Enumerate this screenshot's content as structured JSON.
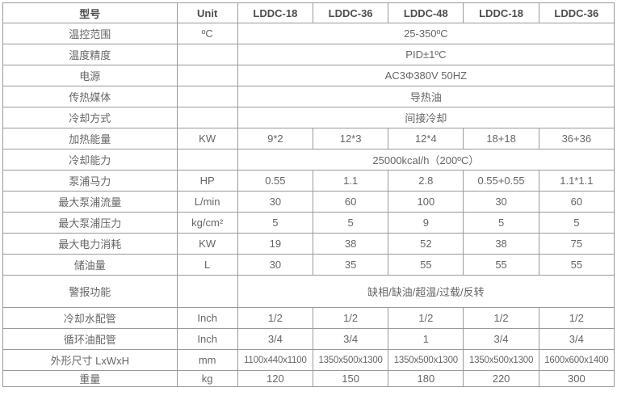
{
  "colors": {
    "outer_border": "#333333",
    "inner_border": "#9a9a9a",
    "body_text": "#666666",
    "header_text": "#4d4d4d",
    "background": "#ffffff"
  },
  "header": {
    "model": "型号",
    "unit": "Unit",
    "models": [
      "LDDC-18",
      "LDDC-36",
      "LDDC-48",
      "LDDC-18",
      "LDDC-36"
    ]
  },
  "rows": [
    {
      "label": "温控范围",
      "unit": "ºC",
      "span": "25-350ºC"
    },
    {
      "label": "温度精度",
      "unit": "",
      "span": "PID±1ºC"
    },
    {
      "label": "电源",
      "unit": "",
      "span": "AC3Φ380V 50HZ"
    },
    {
      "label": "传热媒体",
      "unit": "",
      "span": "导热油"
    },
    {
      "label": "冷却方式",
      "unit": "",
      "span": "间接冷却"
    },
    {
      "label": "加热能量",
      "unit": "KW",
      "values": [
        "9*2",
        "12*3",
        "12*4",
        "18+18",
        "36+36"
      ]
    },
    {
      "label": "冷却能力",
      "unit": "",
      "span": "25000kcal/h（200ºC）"
    },
    {
      "label": "泵浦马力",
      "unit": "HP",
      "values": [
        "0.55",
        "1.1",
        "2.8",
        "0.55+0.55",
        "1.1*1.1"
      ]
    },
    {
      "label": "最大泵浦流量",
      "unit": "L/min",
      "values": [
        "30",
        "60",
        "100",
        "30",
        "60"
      ]
    },
    {
      "label": "最大泵浦压力",
      "unit": "kg/cm²",
      "values": [
        "5",
        "5",
        "9",
        "5",
        "5"
      ]
    },
    {
      "label": "最大电力消耗",
      "unit": "KW",
      "values": [
        "19",
        "38",
        "52",
        "38",
        "75"
      ]
    },
    {
      "label": "储油量",
      "unit": "L",
      "values": [
        "30",
        "35",
        "55",
        "55",
        "55"
      ]
    },
    {
      "label": "警报功能",
      "unit": "",
      "span": "缺相/缺油/超温/过载/反转"
    },
    {
      "label": "冷却水配管",
      "unit": "Inch",
      "values": [
        "1/2",
        "1/2",
        "1/2",
        "1/2",
        "1/2"
      ]
    },
    {
      "label": "循环油配管",
      "unit": "Inch",
      "values": [
        "3/4",
        "3/4",
        "1",
        "3/4",
        "3/4"
      ]
    },
    {
      "label": "外形尺寸 LxWxH",
      "unit": "mm",
      "values": [
        "1100x440x1100",
        "1350x500x1300",
        "1350x500x1300",
        "1350x500x1300",
        "1600x600x1400"
      ]
    },
    {
      "label": "重量",
      "unit": "kg",
      "values": [
        "120",
        "150",
        "180",
        "220",
        "300"
      ]
    }
  ]
}
